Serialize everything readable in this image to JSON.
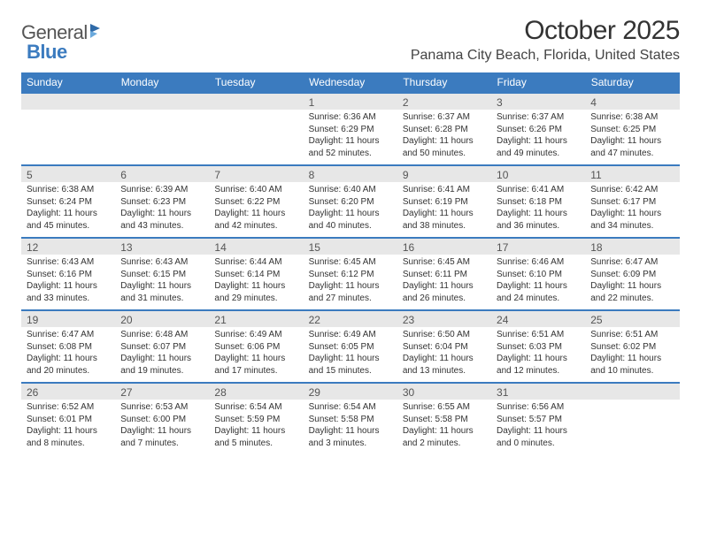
{
  "logo": {
    "word1": "General",
    "word2": "Blue"
  },
  "title": "October 2025",
  "location": "Panama City Beach, Florida, United States",
  "colors": {
    "accent": "#3b7bbf",
    "band": "#e7e7e7",
    "text": "#333333",
    "bg": "#ffffff"
  },
  "dayHeaders": [
    "Sunday",
    "Monday",
    "Tuesday",
    "Wednesday",
    "Thursday",
    "Friday",
    "Saturday"
  ],
  "weeks": [
    [
      null,
      null,
      null,
      {
        "n": "1",
        "sr": "6:36 AM",
        "ss": "6:29 PM",
        "dl": "11 hours and 52 minutes."
      },
      {
        "n": "2",
        "sr": "6:37 AM",
        "ss": "6:28 PM",
        "dl": "11 hours and 50 minutes."
      },
      {
        "n": "3",
        "sr": "6:37 AM",
        "ss": "6:26 PM",
        "dl": "11 hours and 49 minutes."
      },
      {
        "n": "4",
        "sr": "6:38 AM",
        "ss": "6:25 PM",
        "dl": "11 hours and 47 minutes."
      }
    ],
    [
      {
        "n": "5",
        "sr": "6:38 AM",
        "ss": "6:24 PM",
        "dl": "11 hours and 45 minutes."
      },
      {
        "n": "6",
        "sr": "6:39 AM",
        "ss": "6:23 PM",
        "dl": "11 hours and 43 minutes."
      },
      {
        "n": "7",
        "sr": "6:40 AM",
        "ss": "6:22 PM",
        "dl": "11 hours and 42 minutes."
      },
      {
        "n": "8",
        "sr": "6:40 AM",
        "ss": "6:20 PM",
        "dl": "11 hours and 40 minutes."
      },
      {
        "n": "9",
        "sr": "6:41 AM",
        "ss": "6:19 PM",
        "dl": "11 hours and 38 minutes."
      },
      {
        "n": "10",
        "sr": "6:41 AM",
        "ss": "6:18 PM",
        "dl": "11 hours and 36 minutes."
      },
      {
        "n": "11",
        "sr": "6:42 AM",
        "ss": "6:17 PM",
        "dl": "11 hours and 34 minutes."
      }
    ],
    [
      {
        "n": "12",
        "sr": "6:43 AM",
        "ss": "6:16 PM",
        "dl": "11 hours and 33 minutes."
      },
      {
        "n": "13",
        "sr": "6:43 AM",
        "ss": "6:15 PM",
        "dl": "11 hours and 31 minutes."
      },
      {
        "n": "14",
        "sr": "6:44 AM",
        "ss": "6:14 PM",
        "dl": "11 hours and 29 minutes."
      },
      {
        "n": "15",
        "sr": "6:45 AM",
        "ss": "6:12 PM",
        "dl": "11 hours and 27 minutes."
      },
      {
        "n": "16",
        "sr": "6:45 AM",
        "ss": "6:11 PM",
        "dl": "11 hours and 26 minutes."
      },
      {
        "n": "17",
        "sr": "6:46 AM",
        "ss": "6:10 PM",
        "dl": "11 hours and 24 minutes."
      },
      {
        "n": "18",
        "sr": "6:47 AM",
        "ss": "6:09 PM",
        "dl": "11 hours and 22 minutes."
      }
    ],
    [
      {
        "n": "19",
        "sr": "6:47 AM",
        "ss": "6:08 PM",
        "dl": "11 hours and 20 minutes."
      },
      {
        "n": "20",
        "sr": "6:48 AM",
        "ss": "6:07 PM",
        "dl": "11 hours and 19 minutes."
      },
      {
        "n": "21",
        "sr": "6:49 AM",
        "ss": "6:06 PM",
        "dl": "11 hours and 17 minutes."
      },
      {
        "n": "22",
        "sr": "6:49 AM",
        "ss": "6:05 PM",
        "dl": "11 hours and 15 minutes."
      },
      {
        "n": "23",
        "sr": "6:50 AM",
        "ss": "6:04 PM",
        "dl": "11 hours and 13 minutes."
      },
      {
        "n": "24",
        "sr": "6:51 AM",
        "ss": "6:03 PM",
        "dl": "11 hours and 12 minutes."
      },
      {
        "n": "25",
        "sr": "6:51 AM",
        "ss": "6:02 PM",
        "dl": "11 hours and 10 minutes."
      }
    ],
    [
      {
        "n": "26",
        "sr": "6:52 AM",
        "ss": "6:01 PM",
        "dl": "11 hours and 8 minutes."
      },
      {
        "n": "27",
        "sr": "6:53 AM",
        "ss": "6:00 PM",
        "dl": "11 hours and 7 minutes."
      },
      {
        "n": "28",
        "sr": "6:54 AM",
        "ss": "5:59 PM",
        "dl": "11 hours and 5 minutes."
      },
      {
        "n": "29",
        "sr": "6:54 AM",
        "ss": "5:58 PM",
        "dl": "11 hours and 3 minutes."
      },
      {
        "n": "30",
        "sr": "6:55 AM",
        "ss": "5:58 PM",
        "dl": "11 hours and 2 minutes."
      },
      {
        "n": "31",
        "sr": "6:56 AM",
        "ss": "5:57 PM",
        "dl": "11 hours and 0 minutes."
      },
      null
    ]
  ],
  "labels": {
    "sunrise": "Sunrise:",
    "sunset": "Sunset:",
    "daylight": "Daylight:"
  }
}
